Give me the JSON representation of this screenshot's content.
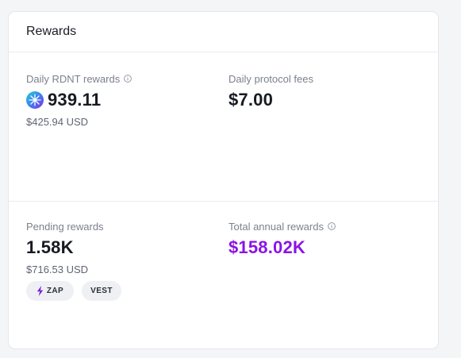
{
  "card": {
    "title": "Rewards"
  },
  "metrics": {
    "daily_rdnt": {
      "label": "Daily RDNT rewards",
      "value": "939.11",
      "sub": "$425.94 USD",
      "token_icon": "rdnt-token-icon",
      "info_icon": "info-icon"
    },
    "daily_fees": {
      "label": "Daily protocol fees",
      "value": "$7.00"
    },
    "pending": {
      "label": "Pending rewards",
      "value": "1.58K",
      "sub": "$716.53 USD"
    },
    "annual": {
      "label": "Total annual rewards",
      "value": "$158.02K",
      "info_icon": "info-icon"
    }
  },
  "actions": {
    "zap_label": "ZAP",
    "vest_label": "VEST",
    "zap_icon": "bolt-icon"
  },
  "colors": {
    "accent": "#8b14e6",
    "bolt": "#7b1fe0",
    "text_primary": "#171a21",
    "text_muted": "#7b818c",
    "pill_bg": "#eef0f4"
  }
}
